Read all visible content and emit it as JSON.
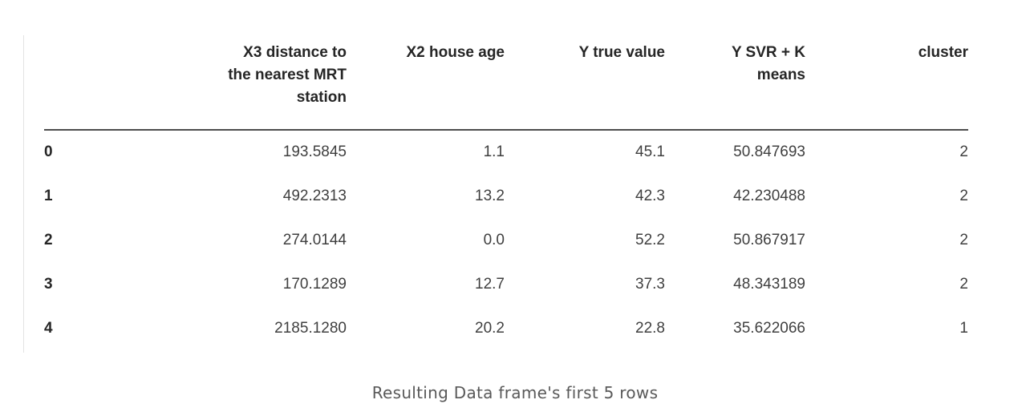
{
  "table": {
    "index_header": "",
    "columns": [
      {
        "label": "X3 distance to the nearest MRT station"
      },
      {
        "label": "X2 house age"
      },
      {
        "label": "Y true value"
      },
      {
        "label": "Y SVR + K means"
      },
      {
        "label": "cluster"
      }
    ],
    "rows": [
      {
        "index": "0",
        "values": [
          "193.5845",
          "1.1",
          "45.1",
          "50.847693",
          "2"
        ]
      },
      {
        "index": "1",
        "values": [
          "492.2313",
          "13.2",
          "42.3",
          "42.230488",
          "2"
        ]
      },
      {
        "index": "2",
        "values": [
          "274.0144",
          "0.0",
          "52.2",
          "50.867917",
          "2"
        ]
      },
      {
        "index": "3",
        "values": [
          "170.1289",
          "12.7",
          "37.3",
          "48.343189",
          "2"
        ]
      },
      {
        "index": "4",
        "values": [
          "2185.1280",
          "20.2",
          "22.8",
          "35.622066",
          "1"
        ]
      }
    ]
  },
  "caption": {
    "text": "Resulting Data frame's first 5 rows"
  },
  "colors": {
    "header_text": "#262626",
    "cell_text": "#3f3f3f",
    "header_rule": "#4d4d4d",
    "left_rule": "#e3e3e3",
    "caption_text": "#595959",
    "background": "#ffffff"
  },
  "chart_data": {
    "type": "table",
    "title": "Resulting Data frame's first 5 rows",
    "columns": [
      "",
      "X3 distance to the nearest MRT station",
      "X2 house age",
      "Y true value",
      "Y SVR + K means",
      "cluster"
    ],
    "rows": [
      [
        0,
        193.5845,
        1.1,
        45.1,
        50.847693,
        2
      ],
      [
        1,
        492.2313,
        13.2,
        42.3,
        42.230488,
        2
      ],
      [
        2,
        274.0144,
        0.0,
        52.2,
        50.867917,
        2
      ],
      [
        3,
        170.1289,
        12.7,
        37.3,
        48.343189,
        2
      ],
      [
        4,
        2185.128,
        20.2,
        22.8,
        35.622066,
        1
      ]
    ]
  }
}
